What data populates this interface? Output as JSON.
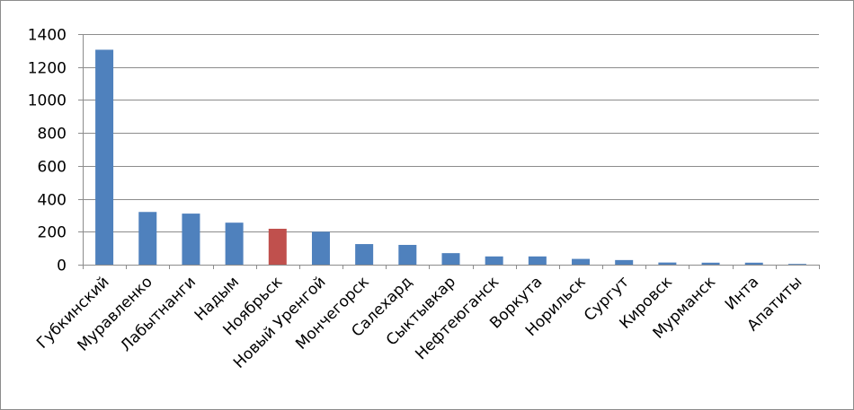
{
  "chart_data": {
    "type": "bar",
    "title": "",
    "xlabel": "",
    "ylabel": "",
    "ylim": [
      0,
      1400
    ],
    "yticks": [
      0,
      200,
      400,
      600,
      800,
      1000,
      1200,
      1400
    ],
    "ytick_labels": [
      "0",
      "200",
      "400",
      "600",
      "800",
      "1000",
      "1200",
      "1400"
    ],
    "grid": true,
    "legend": "none",
    "categories": [
      "Губкинский",
      "Муравленко",
      "Лабытнанги",
      "Надым",
      "Ноябрьск",
      "Новый Уренгой",
      "Мончегорск",
      "Салехард",
      "Сыктывкар",
      "Нефтеюганск",
      "Воркута",
      "Норильск",
      "Сургут",
      "Кировск",
      "Мурманск",
      "Инта",
      "Апатиты"
    ],
    "values": [
      1305,
      320,
      310,
      255,
      218,
      200,
      125,
      120,
      70,
      50,
      50,
      35,
      28,
      13,
      12,
      12,
      2
    ],
    "colors": [
      "#4f81bd",
      "#4f81bd",
      "#4f81bd",
      "#4f81bd",
      "#c0504d",
      "#4f81bd",
      "#4f81bd",
      "#4f81bd",
      "#4f81bd",
      "#4f81bd",
      "#4f81bd",
      "#4f81bd",
      "#4f81bd",
      "#4f81bd",
      "#4f81bd",
      "#4f81bd",
      "#4f81bd"
    ],
    "highlight_category": "Ноябрьск"
  }
}
